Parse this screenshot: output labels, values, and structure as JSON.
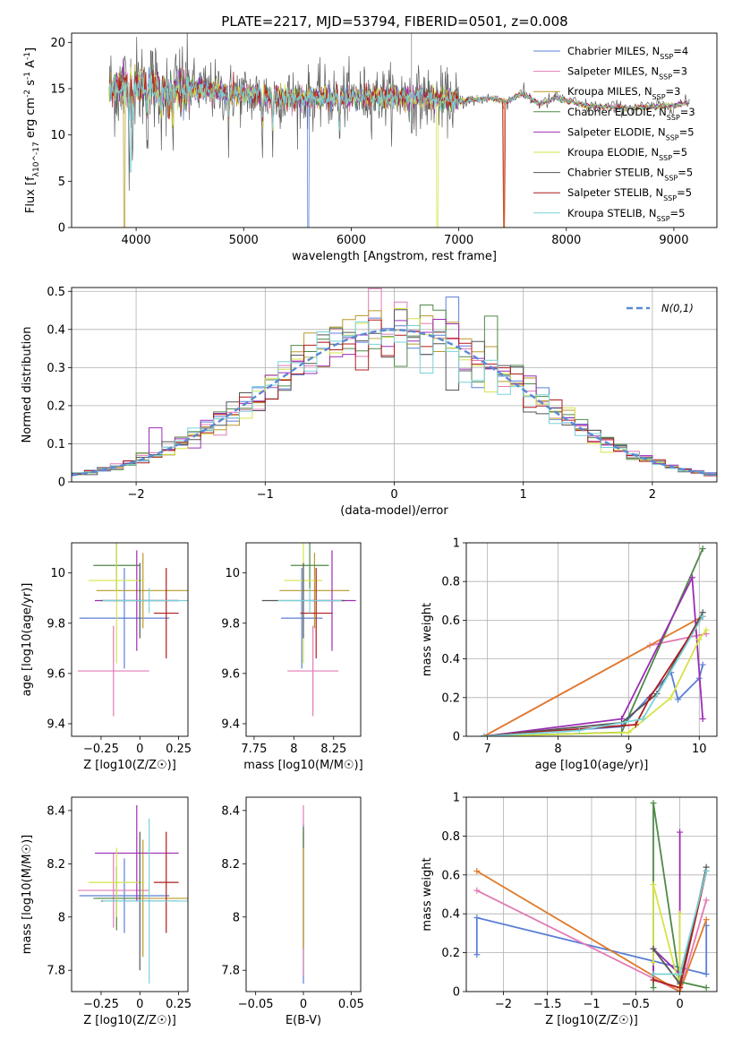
{
  "figure": {
    "title": "PLATE=2217, MJD=53794, FIBERID=0501, z=0.008"
  },
  "colors": {
    "palette": [
      "#5b7fd6",
      "#e27ab4",
      "#b89a2a",
      "#4e8a48",
      "#9c2db5",
      "#d6e34a",
      "#555555",
      "#b01c1c",
      "#78d2d8"
    ],
    "gauss": "#5b89d2",
    "grid": "#b0b0b0",
    "orange": "#e07a2a"
  },
  "chart_data": [
    {
      "type": "line",
      "panel": "spectrum",
      "title": "PLATE=2217, MJD=53794, FIBERID=0501, z=0.008",
      "xlabel": "wavelength [Angstrom, rest frame]",
      "ylabel": "Flux [f_λ10^-17 erg cm^-2 s^-1 A^-1]",
      "xlim": [
        3400,
        9400
      ],
      "ylim": [
        0,
        21
      ],
      "xticks": [
        4000,
        5000,
        6000,
        7000,
        8000,
        9000
      ],
      "yticks": [
        0,
        5,
        10,
        15,
        20
      ],
      "grid": false,
      "legend_position": "top-right",
      "continuum": {
        "x": [
          3750,
          3900,
          4000,
          4100,
          4300,
          4500,
          5000,
          5500,
          6000,
          6500,
          7000,
          7300,
          7500,
          7800,
          8200,
          8600,
          9000,
          9150
        ],
        "y": [
          15.0,
          15.2,
          15.4,
          15.3,
          15.1,
          15.0,
          14.4,
          14.0,
          14.1,
          14.2,
          13.6,
          14.0,
          13.4,
          14.3,
          13.1,
          12.9,
          13.2,
          13.5
        ]
      },
      "series": [
        {
          "name": "Chabrier MILES, N_SSP=4",
          "dips": [
            {
              "x": 5600,
              "y": 0
            }
          ]
        },
        {
          "name": "Salpeter MILES, N_SSP=3",
          "dips": []
        },
        {
          "name": "Kroupa MILES, N_SSP=3",
          "dips": [
            {
              "x": 3890,
              "y": 0
            }
          ]
        },
        {
          "name": "Chabrier ELODIE, N_SSP=3",
          "dips": []
        },
        {
          "name": "Salpeter ELODIE, N_SSP=5",
          "dips": []
        },
        {
          "name": "Kroupa ELODIE, N_SSP=5",
          "dips": [
            {
              "x": 6800,
              "y": 0
            }
          ]
        },
        {
          "name": "Chabrier STELIB, N_SSP=5",
          "dips": []
        },
        {
          "name": "Salpeter STELIB, N_SSP=5",
          "dips": [
            {
              "x": 7420,
              "y": 0
            }
          ]
        },
        {
          "name": "Kroupa STELIB, N_SSP=5",
          "dips": [
            {
              "x": 3950,
              "y": 6
            }
          ]
        }
      ]
    },
    {
      "type": "histogram",
      "panel": "residuals",
      "xlabel": "(data-model)/error",
      "ylabel": "Normed distribution",
      "xlim": [
        -2.5,
        2.5
      ],
      "ylim": [
        0,
        0.51
      ],
      "xticks": [
        -2,
        -1,
        0,
        1,
        2
      ],
      "yticks": [
        0.0,
        0.1,
        0.2,
        0.3,
        0.4,
        0.5
      ],
      "grid": true,
      "bin_width": 0.1,
      "legend": {
        "label": "N(0,1)",
        "position": "top-right"
      },
      "series_names": [
        "Chabrier MILES",
        "Salpeter MILES",
        "Kroupa MILES",
        "Chabrier ELODIE",
        "Salpeter ELODIE",
        "Kroupa ELODIE",
        "Chabrier STELIB",
        "Salpeter STELIB",
        "Kroupa STELIB"
      ],
      "notable_bins": [
        {
          "series": 0,
          "x": 0.45,
          "y": 0.485
        },
        {
          "series": 4,
          "x": -1.85,
          "y": 0.142
        },
        {
          "series": 3,
          "x": 0.75,
          "y": 0.435
        },
        {
          "series": 5,
          "x": 0.05,
          "y": 0.455
        }
      ]
    },
    {
      "type": "errorbar",
      "panel": "age-vs-Z",
      "xlabel": "Z [log10(Z/Z☉)]",
      "ylabel": "age [log10(age/yr)]",
      "xlim": [
        -0.44,
        0.31
      ],
      "ylim": [
        9.35,
        10.12
      ],
      "xticks": [
        -0.25,
        0.0,
        0.25
      ],
      "yticks": [
        9.4,
        9.6,
        9.8,
        10.0
      ],
      "points": [
        {
          "x": -0.1,
          "xerr": 0.29,
          "y": 9.82,
          "yerr": 0.2
        },
        {
          "x": -0.17,
          "xerr": 0.23,
          "y": 9.61,
          "yerr": 0.18
        },
        {
          "x": 0.02,
          "xerr": 0.3,
          "y": 9.93,
          "yerr": 0.15
        },
        {
          "x": -0.15,
          "xerr": 0.15,
          "y": 10.03,
          "yerr": 0.1
        },
        {
          "x": -0.02,
          "xerr": 0.27,
          "y": 9.89,
          "yerr": 0.2
        },
        {
          "x": -0.15,
          "xerr": 0.18,
          "y": 9.97,
          "yerr": 0.33
        },
        {
          "x": 0.0,
          "xerr": 0.25,
          "y": 9.89,
          "yerr": 0.15
        },
        {
          "x": 0.17,
          "xerr": 0.08,
          "y": 9.84,
          "yerr": 0.18
        },
        {
          "x": 0.06,
          "xerr": 0.3,
          "y": 9.89,
          "yerr": 0.05
        }
      ]
    },
    {
      "type": "errorbar",
      "panel": "age-vs-mass",
      "xlabel": "mass [log10(M/M☉)]",
      "ylabel": "",
      "xlim": [
        7.7,
        8.42
      ],
      "ylim": [
        9.35,
        10.12
      ],
      "xticks": [
        7.75,
        8.0,
        8.25
      ],
      "yticks": [
        9.4,
        9.6,
        9.8,
        10.0
      ],
      "points": [
        {
          "x": 8.05,
          "xerr": 0.13,
          "y": 9.82,
          "yerr": 0.2
        },
        {
          "x": 8.12,
          "xerr": 0.16,
          "y": 9.61,
          "yerr": 0.18
        },
        {
          "x": 8.13,
          "xerr": 0.22,
          "y": 9.93,
          "yerr": 0.15
        },
        {
          "x": 8.1,
          "xerr": 0.12,
          "y": 10.03,
          "yerr": 0.1
        },
        {
          "x": 8.24,
          "xerr": 0.15,
          "y": 9.89,
          "yerr": 0.2
        },
        {
          "x": 8.06,
          "xerr": 0.12,
          "y": 9.97,
          "yerr": 0.33
        },
        {
          "x": 8.06,
          "xerr": 0.26,
          "y": 9.89,
          "yerr": 0.15
        },
        {
          "x": 8.14,
          "xerr": 0.1,
          "y": 9.84,
          "yerr": 0.18
        },
        {
          "x": 8.1,
          "xerr": 0.2,
          "y": 9.89,
          "yerr": 0.05
        }
      ]
    },
    {
      "type": "line",
      "panel": "mass-weight-vs-age",
      "xlabel": "age [log10(age/yr)]",
      "ylabel": "mass weight",
      "xlim": [
        6.7,
        10.25
      ],
      "ylim": [
        0,
        1
      ],
      "xticks": [
        7,
        8,
        9,
        10
      ],
      "yticks": [
        0.0,
        0.2,
        0.4,
        0.6,
        0.8,
        1.0
      ],
      "grid": true,
      "series": [
        {
          "name": "Chabrier MILES",
          "x": [
            6.95,
            8.9,
            9.6,
            9.7,
            10.0,
            10.05
          ],
          "y": [
            0.0,
            0.05,
            0.33,
            0.19,
            0.3,
            0.37
          ]
        },
        {
          "name": "Salpeter MILES",
          "x": [
            6.95,
            9.3,
            10.1
          ],
          "y": [
            0.0,
            0.47,
            0.53
          ]
        },
        {
          "name": "Kroupa MILES",
          "x": [
            6.95,
            10.05
          ],
          "y": [
            0.0,
            0.62
          ]
        },
        {
          "name": "Chabrier ELODIE",
          "x": [
            6.95,
            8.9,
            10.05
          ],
          "y": [
            0.0,
            0.02,
            0.97
          ]
        },
        {
          "name": "Salpeter ELODIE",
          "x": [
            6.95,
            8.9,
            9.9,
            10.05
          ],
          "y": [
            0.0,
            0.09,
            0.82,
            0.09
          ]
        },
        {
          "name": "Kroupa ELODIE",
          "x": [
            6.95,
            9.0,
            9.6,
            10.0,
            10.1
          ],
          "y": [
            0.0,
            0.02,
            0.2,
            0.5,
            0.55
          ]
        },
        {
          "name": "Chabrier STELIB",
          "x": [
            6.95,
            8.9,
            9.4,
            10.05
          ],
          "y": [
            0.0,
            0.07,
            0.22,
            0.64
          ]
        },
        {
          "name": "Salpeter STELIB",
          "x": [
            6.95,
            9.1,
            9.3,
            10.05
          ],
          "y": [
            0.0,
            0.06,
            0.2,
            0.62
          ]
        },
        {
          "name": "Kroupa STELIB",
          "x": [
            6.95,
            8.3,
            9.2,
            10.05
          ],
          "y": [
            0.0,
            0.03,
            0.09,
            0.62
          ]
        }
      ]
    },
    {
      "type": "errorbar",
      "panel": "mass-vs-Z",
      "xlabel": "Z [log10(Z/Z☉)]",
      "ylabel": "mass [log10(M/M☉)]",
      "xlim": [
        -0.44,
        0.31
      ],
      "ylim": [
        7.72,
        8.45
      ],
      "xticks": [
        -0.25,
        0.0,
        0.25
      ],
      "yticks": [
        7.8,
        8.0,
        8.2,
        8.4
      ],
      "points": [
        {
          "x": -0.1,
          "xerr": 0.29,
          "y": 8.08,
          "yerr": 0.14
        },
        {
          "x": -0.17,
          "xerr": 0.23,
          "y": 8.1,
          "yerr": 0.14
        },
        {
          "x": 0.02,
          "xerr": 0.3,
          "y": 8.07,
          "yerr": 0.22
        },
        {
          "x": -0.15,
          "xerr": 0.15,
          "y": 8.07,
          "yerr": 0.12
        },
        {
          "x": -0.02,
          "xerr": 0.27,
          "y": 8.24,
          "yerr": 0.18
        },
        {
          "x": -0.15,
          "xerr": 0.18,
          "y": 8.13,
          "yerr": 0.13
        },
        {
          "x": 0.0,
          "xerr": 0.25,
          "y": 8.06,
          "yerr": 0.26
        },
        {
          "x": 0.17,
          "xerr": 0.08,
          "y": 8.13,
          "yerr": 0.19
        },
        {
          "x": 0.06,
          "xerr": 0.3,
          "y": 8.06,
          "yerr": 0.31
        }
      ]
    },
    {
      "type": "errorbar",
      "panel": "mass-vs-EBV",
      "xlabel": "E(B-V)",
      "ylabel": "",
      "xlim": [
        -0.06,
        0.06
      ],
      "ylim": [
        7.72,
        8.45
      ],
      "xticks": [
        -0.05,
        0.0,
        0.05
      ],
      "yticks": [
        7.8,
        8.0,
        8.2,
        8.4
      ],
      "points": [
        {
          "x": 0.0,
          "xerr": 0.0,
          "y": 8.05,
          "yerr": 0.3
        },
        {
          "x": 0.0,
          "xerr": 0.0,
          "y": 8.1,
          "yerr": 0.32
        },
        {
          "x": 0.0,
          "xerr": 0.0,
          "y": 8.1,
          "yerr": 0.22
        },
        {
          "x": 0.0,
          "xerr": 0.0,
          "y": 8.3,
          "yerr": 0.04
        }
      ]
    },
    {
      "type": "line",
      "panel": "mass-weight-vs-Z",
      "xlabel": "Z [log10(Z/Z☉)]",
      "ylabel": "mass weight",
      "xlim": [
        -2.42,
        0.42
      ],
      "ylim": [
        0,
        1
      ],
      "xticks": [
        -2.0,
        -1.5,
        -1.0,
        -0.5,
        0.0
      ],
      "yticks": [
        0.0,
        0.2,
        0.4,
        0.6,
        0.8,
        1.0
      ],
      "grid": true,
      "series": [
        {
          "name": "Chabrier MILES",
          "x": [
            -2.3,
            -2.3,
            0.3,
            0.3
          ],
          "y": [
            0.19,
            0.38,
            0.09,
            0.34
          ]
        },
        {
          "name": "Salpeter MILES",
          "x": [
            -2.3,
            0.0,
            0.3
          ],
          "y": [
            0.52,
            0.0,
            0.47
          ]
        },
        {
          "name": "Kroupa MILES",
          "x": [
            -2.3,
            0.0,
            0.3
          ],
          "y": [
            0.62,
            0.0,
            0.37
          ]
        },
        {
          "name": "Chabrier ELODIE",
          "x": [
            -0.3,
            -0.3,
            0.0,
            0.3
          ],
          "y": [
            0.02,
            0.97,
            0.05,
            0.02
          ]
        },
        {
          "name": "Salpeter ELODIE",
          "x": [
            -0.3,
            -0.3,
            0.0,
            0.0
          ],
          "y": [
            0.09,
            0.22,
            0.09,
            0.82
          ]
        },
        {
          "name": "Kroupa ELODIE",
          "x": [
            -0.3,
            -0.3,
            0.0,
            0.0,
            0.0
          ],
          "y": [
            0.15,
            0.55,
            0.02,
            0.4,
            0.2
          ]
        },
        {
          "name": "Chabrier STELIB",
          "x": [
            -0.3,
            0.0,
            0.3
          ],
          "y": [
            0.22,
            0.04,
            0.64
          ]
        },
        {
          "name": "Salpeter STELIB",
          "x": [
            -0.3,
            0.0,
            0.3
          ],
          "y": [
            0.06,
            0.02,
            0.62
          ]
        },
        {
          "name": "Kroupa STELIB",
          "x": [
            -0.3,
            0.0,
            0.3
          ],
          "y": [
            0.09,
            0.09,
            0.62
          ]
        }
      ]
    }
  ]
}
